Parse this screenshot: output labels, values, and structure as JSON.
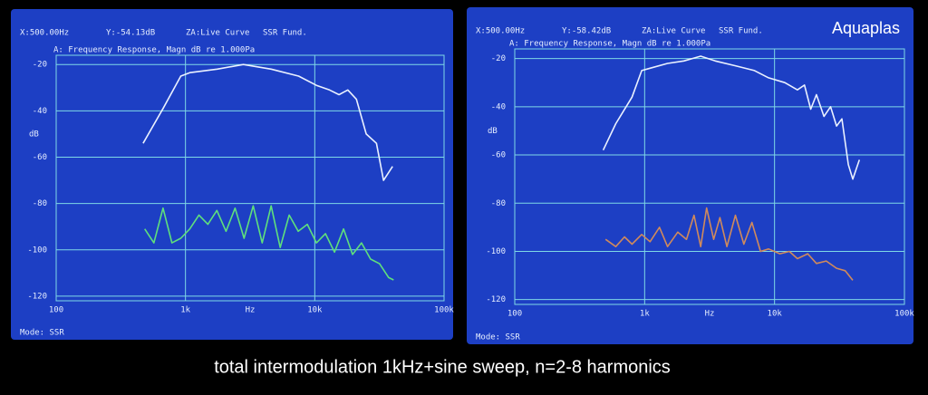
{
  "caption": "total intermodulation 1kHz+sine sweep, n=2-8 harmonics",
  "chart_data": [
    {
      "type": "line",
      "cursor_x": "X:500.00Hz",
      "cursor_y": "Y:-54.13dB",
      "mode_za": "ZA:Live Curve",
      "analysis": "SSR Fund.",
      "title": "A: Frequency Response, Magn dB re 1.000Pa",
      "ylabel": "dB",
      "xlabel": "Hz",
      "footer": "Mode: SSR",
      "xlog": true,
      "grid": true,
      "xlim": [
        100,
        100000
      ],
      "xticks": [
        100,
        {
          "value": 1000,
          "label": "1k"
        },
        {
          "value": 10000,
          "label": "10k"
        },
        {
          "value": 100000,
          "label": "100k"
        }
      ],
      "ylim": [
        -122,
        -16
      ],
      "yticks": [
        -20,
        -40,
        -60,
        -80,
        -100,
        -120
      ],
      "series": [
        {
          "color": "#eaf1ff",
          "x": [
            470,
            670,
            920,
            1080,
            1760,
            2800,
            4600,
            7500,
            10300,
            13000,
            15400,
            18000,
            21000,
            25000,
            30000,
            34000,
            40000
          ],
          "values": [
            -54,
            -39,
            -25,
            -23.5,
            -22,
            -20,
            -22,
            -25,
            -29,
            -31,
            -33,
            -31,
            -35,
            -50,
            -54,
            -70,
            -64
          ]
        },
        {
          "color": "#5fe07c",
          "x": [
            484,
            570,
            670,
            785,
            920,
            1080,
            1270,
            1490,
            1750,
            2060,
            2420,
            2840,
            3340,
            3920,
            4600,
            5400,
            6340,
            7450,
            8750,
            10300,
            12100,
            14200,
            16700,
            19600,
            23000,
            27000,
            31700,
            37300,
            40700
          ],
          "values": [
            -91,
            -97,
            -82,
            -97,
            -95,
            -91,
            -85,
            -89,
            -83,
            -92,
            -82,
            -95,
            -81,
            -97,
            -81,
            -99,
            -85,
            -92,
            -89,
            -97,
            -93,
            -101,
            -91,
            -102,
            -97,
            -104,
            -106,
            -112,
            -113
          ]
        }
      ]
    },
    {
      "type": "line",
      "cursor_x": "X:500.00Hz",
      "cursor_y": "Y:-58.42dB",
      "mode_za": "ZA:Live Curve",
      "analysis": "SSR Fund.",
      "title": "A: Frequency Response, Magn dB re 1.000Pa",
      "ylabel": "dB",
      "xlabel": "Hz",
      "footer": "Mode: SSR",
      "annotation": "Aquaplas",
      "xlog": true,
      "grid": true,
      "xlim": [
        100,
        100000
      ],
      "xticks": [
        100,
        {
          "value": 1000,
          "label": "1k"
        },
        {
          "value": 10000,
          "label": "10k"
        },
        {
          "value": 100000,
          "label": "100k"
        }
      ],
      "ylim": [
        -122,
        -16
      ],
      "yticks": [
        -20,
        -40,
        -60,
        -80,
        -100,
        -120
      ],
      "series": [
        {
          "color": "#eaf1ff",
          "x": [
            480,
            600,
            800,
            950,
            1100,
            1500,
            2000,
            2700,
            3500,
            5000,
            7000,
            9000,
            12000,
            15000,
            17000,
            19000,
            21000,
            24000,
            27000,
            30000,
            33000,
            37000,
            40000,
            45000
          ],
          "values": [
            -58,
            -47,
            -36,
            -25,
            -24,
            -22,
            -21,
            -19,
            -21,
            -23,
            -25,
            -28,
            -30,
            -33,
            -31,
            -41,
            -35,
            -44,
            -40,
            -48,
            -45,
            -64,
            -70,
            -62
          ]
        },
        {
          "color": "#d08a5c",
          "x": [
            500,
            600,
            700,
            800,
            950,
            1100,
            1300,
            1500,
            1800,
            2100,
            2400,
            2700,
            3000,
            3400,
            3800,
            4300,
            5000,
            5800,
            6700,
            7800,
            9000,
            11000,
            13000,
            15000,
            18000,
            21000,
            25000,
            30000,
            35000,
            40000
          ],
          "values": [
            -95,
            -98,
            -94,
            -97,
            -93,
            -96,
            -90,
            -98,
            -92,
            -95,
            -85,
            -98,
            -82,
            -95,
            -86,
            -98,
            -85,
            -97,
            -88,
            -100,
            -99,
            -101,
            -100,
            -103,
            -101,
            -105,
            -104,
            -107,
            -108,
            -112
          ]
        }
      ]
    }
  ]
}
